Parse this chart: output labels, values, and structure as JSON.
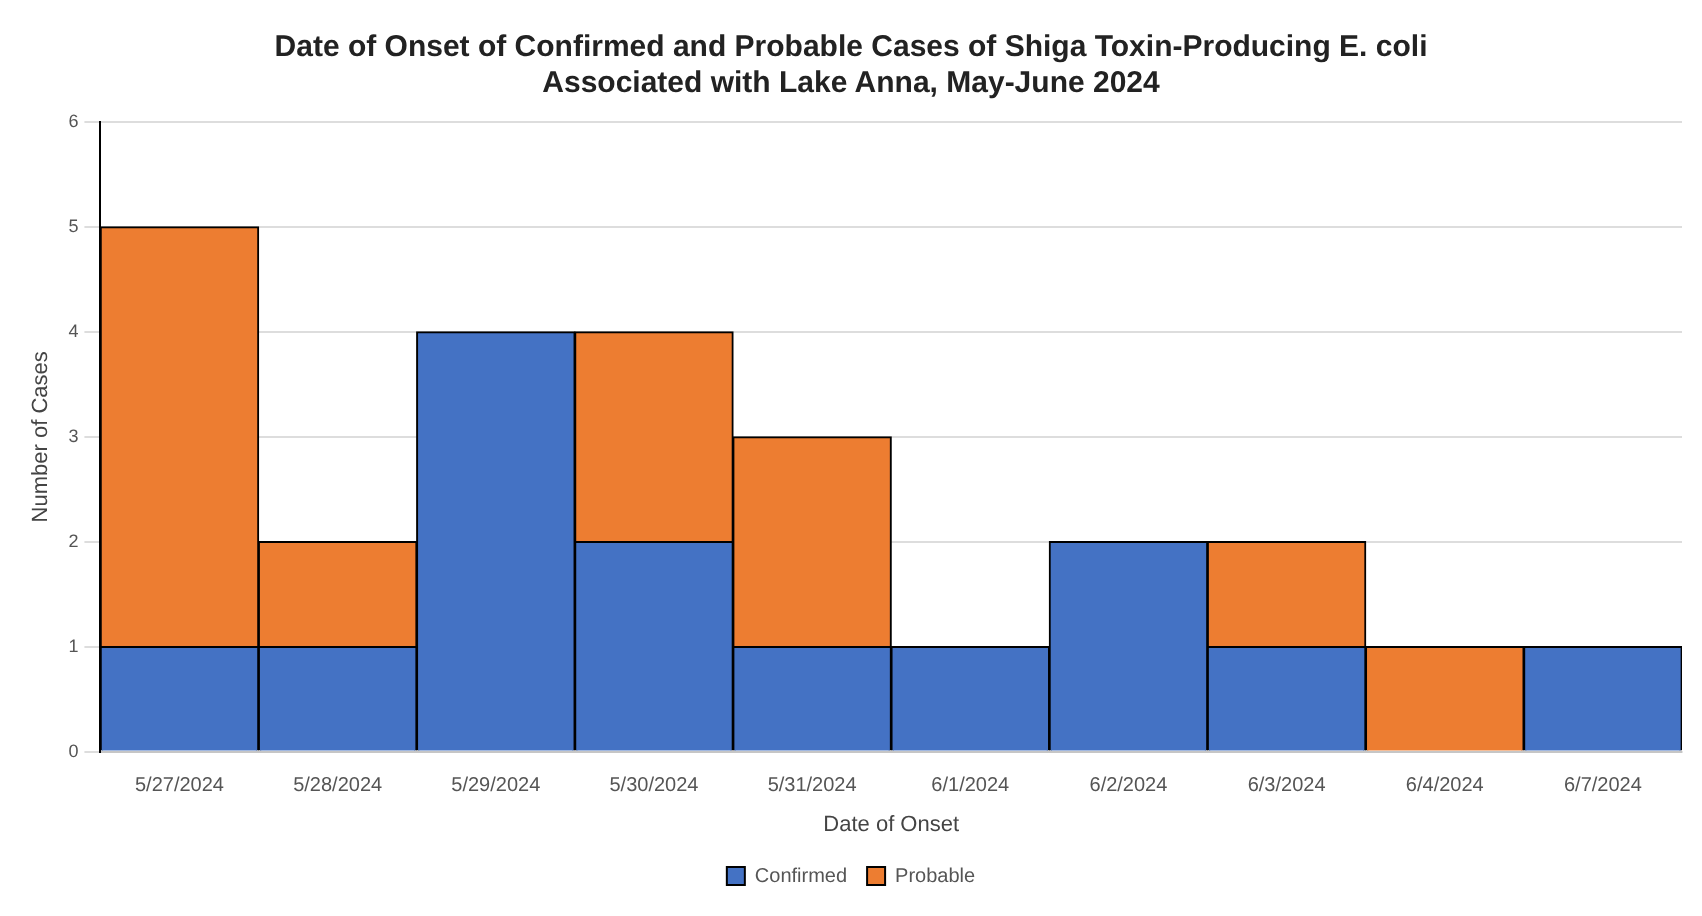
{
  "chart_data": {
    "type": "bar",
    "title": "Date of Onset of Confirmed and Probable Cases of Shiga Toxin-Producing E. coli\nAssociated with Lake Anna, May-June 2024",
    "xlabel": "Date of Onset",
    "ylabel": "Number of Cases",
    "categories": [
      "5/27/2024",
      "5/28/2024",
      "5/29/2024",
      "5/30/2024",
      "5/31/2024",
      "6/1/2024",
      "6/2/2024",
      "6/3/2024",
      "6/4/2024",
      "6/7/2024"
    ],
    "series": [
      {
        "name": "Confirmed",
        "color": "#4472c4",
        "values": [
          1,
          1,
          4,
          2,
          1,
          1,
          2,
          1,
          0,
          1
        ]
      },
      {
        "name": "Probable",
        "color": "#ed7d31",
        "values": [
          4,
          1,
          0,
          2,
          2,
          0,
          0,
          1,
          1,
          0
        ]
      }
    ],
    "stacked": true,
    "ylim": [
      0,
      6
    ],
    "yticks": [
      0,
      1,
      2,
      3,
      4,
      5,
      6
    ],
    "grid": "y",
    "legend": "bottom"
  }
}
